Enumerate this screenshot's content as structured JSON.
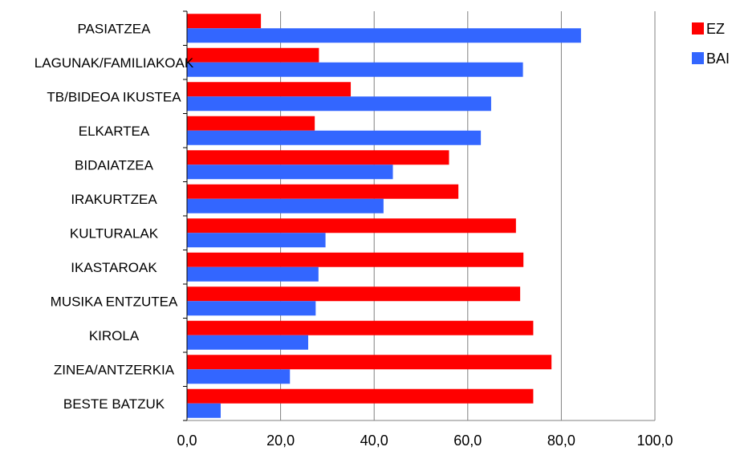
{
  "chart_data": {
    "type": "bar",
    "orientation": "horizontal",
    "categories": [
      "PASIATZEA",
      "LAGUNAK/FAMILIAKOAK",
      "TB/BIDEOA IKUSTEA",
      "ELKARTEA",
      "BIDAIATZEA",
      "IRAKURTZEA",
      "KULTURALAK",
      "IKASTAROAK",
      "MUSIKA ENTZUTEA",
      "KIROLA",
      "ZINEA/ANTZERKIA",
      "BESTE BATZUK"
    ],
    "series": [
      {
        "name": "EZ",
        "color": "#ff0000",
        "values": [
          15.8,
          28.2,
          35.0,
          27.3,
          56.0,
          58.0,
          70.3,
          71.9,
          71.2,
          74.0,
          77.9,
          74.0
        ]
      },
      {
        "name": "BAI",
        "color": "#3366ff",
        "values": [
          84.2,
          71.8,
          65.0,
          62.8,
          44.0,
          42.0,
          29.6,
          28.1,
          27.5,
          25.9,
          22.0,
          7.2
        ]
      }
    ],
    "xlim": [
      0,
      100
    ],
    "xticks": [
      "0,0",
      "20,0",
      "40,0",
      "60,0",
      "80,0",
      "100,0"
    ],
    "grid": "vertical",
    "legend_position": "top-right",
    "title": "",
    "xlabel": "",
    "ylabel": ""
  }
}
